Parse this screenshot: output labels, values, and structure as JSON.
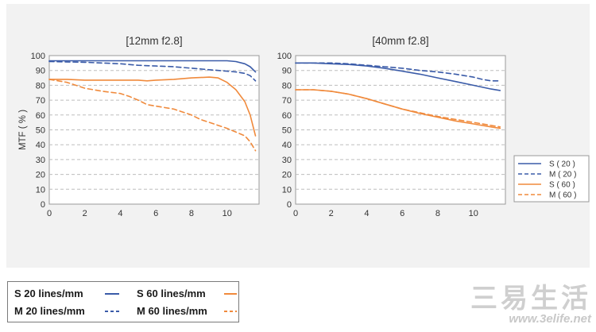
{
  "legend_series": [
    "S ( 20 )",
    "M ( 20 )",
    "S ( 60 )",
    "M ( 60 )"
  ],
  "bottom_legend": {
    "s20": "S 20 lines/mm",
    "m20": "M 20 lines/mm",
    "s60": "S 60 lines/mm",
    "m60": "M 60 lines/mm"
  },
  "watermark": {
    "brand": "三易生活",
    "url": "www.3elife.net"
  },
  "colors": {
    "s20": "#3a5ba8",
    "m20": "#3a5ba8",
    "s60": "#f08a3c",
    "m60": "#f08a3c"
  },
  "chart_data": [
    {
      "type": "line",
      "title": "[12mm f2.8]",
      "ylabel": "MTF ( % )",
      "xlim": [
        0,
        11.8
      ],
      "ylim": [
        0,
        100
      ],
      "xticks": [
        0,
        2,
        4,
        6,
        8,
        10
      ],
      "yticks": [
        0,
        10,
        20,
        30,
        40,
        50,
        60,
        70,
        80,
        90,
        100
      ],
      "grid": true,
      "series": [
        {
          "name": "S ( 20 )",
          "key": "s20",
          "dash": false,
          "x": [
            0,
            2,
            4,
            6,
            8,
            9,
            10,
            10.5,
            11,
            11.3,
            11.6
          ],
          "y": [
            96.5,
            96.5,
            96.5,
            96.5,
            96.5,
            96.5,
            96.5,
            96,
            94.5,
            92.5,
            89
          ]
        },
        {
          "name": "M ( 20 )",
          "key": "m20",
          "dash": true,
          "x": [
            0,
            2,
            4,
            5,
            6,
            7,
            8,
            9,
            10,
            10.5,
            11,
            11.3,
            11.6
          ],
          "y": [
            96,
            95.5,
            94.5,
            93.5,
            93,
            92.5,
            91.5,
            90.5,
            89.5,
            89,
            88,
            86.5,
            83
          ]
        },
        {
          "name": "S ( 60 )",
          "key": "s60",
          "dash": false,
          "x": [
            0,
            1,
            2,
            3,
            4,
            5,
            5.5,
            6,
            7,
            8,
            9,
            9.5,
            10,
            10.5,
            11,
            11.3,
            11.6
          ],
          "y": [
            84,
            84,
            83.5,
            83.5,
            83.5,
            83.5,
            83,
            83.5,
            84,
            85,
            85.5,
            85,
            82,
            77,
            69,
            60,
            46
          ]
        },
        {
          "name": "M ( 60 )",
          "key": "m60",
          "dash": true,
          "x": [
            0,
            1,
            2,
            3,
            4,
            4.5,
            5,
            5.5,
            6,
            7,
            8,
            8.5,
            9,
            10,
            10.5,
            11,
            11.3,
            11.6
          ],
          "y": [
            84,
            82,
            78,
            76,
            74.5,
            72.5,
            70,
            67,
            66,
            64,
            60,
            57,
            55,
            51,
            48.5,
            46,
            42,
            36
          ]
        }
      ]
    },
    {
      "type": "line",
      "title": "[40mm f2.8]",
      "ylabel": "",
      "xlim": [
        0,
        11.8
      ],
      "ylim": [
        0,
        100
      ],
      "xticks": [
        0,
        2,
        4,
        6,
        8,
        10
      ],
      "yticks": [
        0,
        10,
        20,
        30,
        40,
        50,
        60,
        70,
        80,
        90,
        100
      ],
      "grid": true,
      "series": [
        {
          "name": "S ( 20 )",
          "key": "s20",
          "dash": false,
          "x": [
            0,
            1,
            2,
            3,
            4,
            5,
            6,
            7,
            8,
            9,
            10,
            11,
            11.5
          ],
          "y": [
            95,
            95,
            94.5,
            94,
            93,
            91.5,
            89.5,
            87.5,
            85,
            82.5,
            80,
            77.5,
            76.5
          ]
        },
        {
          "name": "M ( 20 )",
          "key": "m20",
          "dash": true,
          "x": [
            0,
            1,
            2,
            3,
            4,
            5,
            6,
            7,
            8,
            9,
            10,
            10.5,
            11,
            11.5
          ],
          "y": [
            95,
            95,
            95,
            94.5,
            93.5,
            92.5,
            91.5,
            90,
            89,
            87.5,
            85.5,
            84,
            83,
            83
          ]
        },
        {
          "name": "S ( 60 )",
          "key": "s60",
          "dash": false,
          "x": [
            0,
            1,
            2,
            3,
            4,
            5,
            6,
            7,
            8,
            9,
            10,
            11,
            11.5
          ],
          "y": [
            77,
            77,
            76,
            74,
            71,
            67.5,
            64,
            61,
            58.5,
            56,
            54,
            52,
            51
          ]
        },
        {
          "name": "M ( 60 )",
          "key": "m60",
          "dash": true,
          "x": [
            0,
            1,
            2,
            3,
            4,
            5,
            6,
            7,
            8,
            9,
            10,
            11,
            11.5
          ],
          "y": [
            77,
            77,
            76,
            74,
            71,
            67.5,
            64,
            61.5,
            59,
            57,
            55,
            53,
            52
          ]
        }
      ]
    }
  ]
}
